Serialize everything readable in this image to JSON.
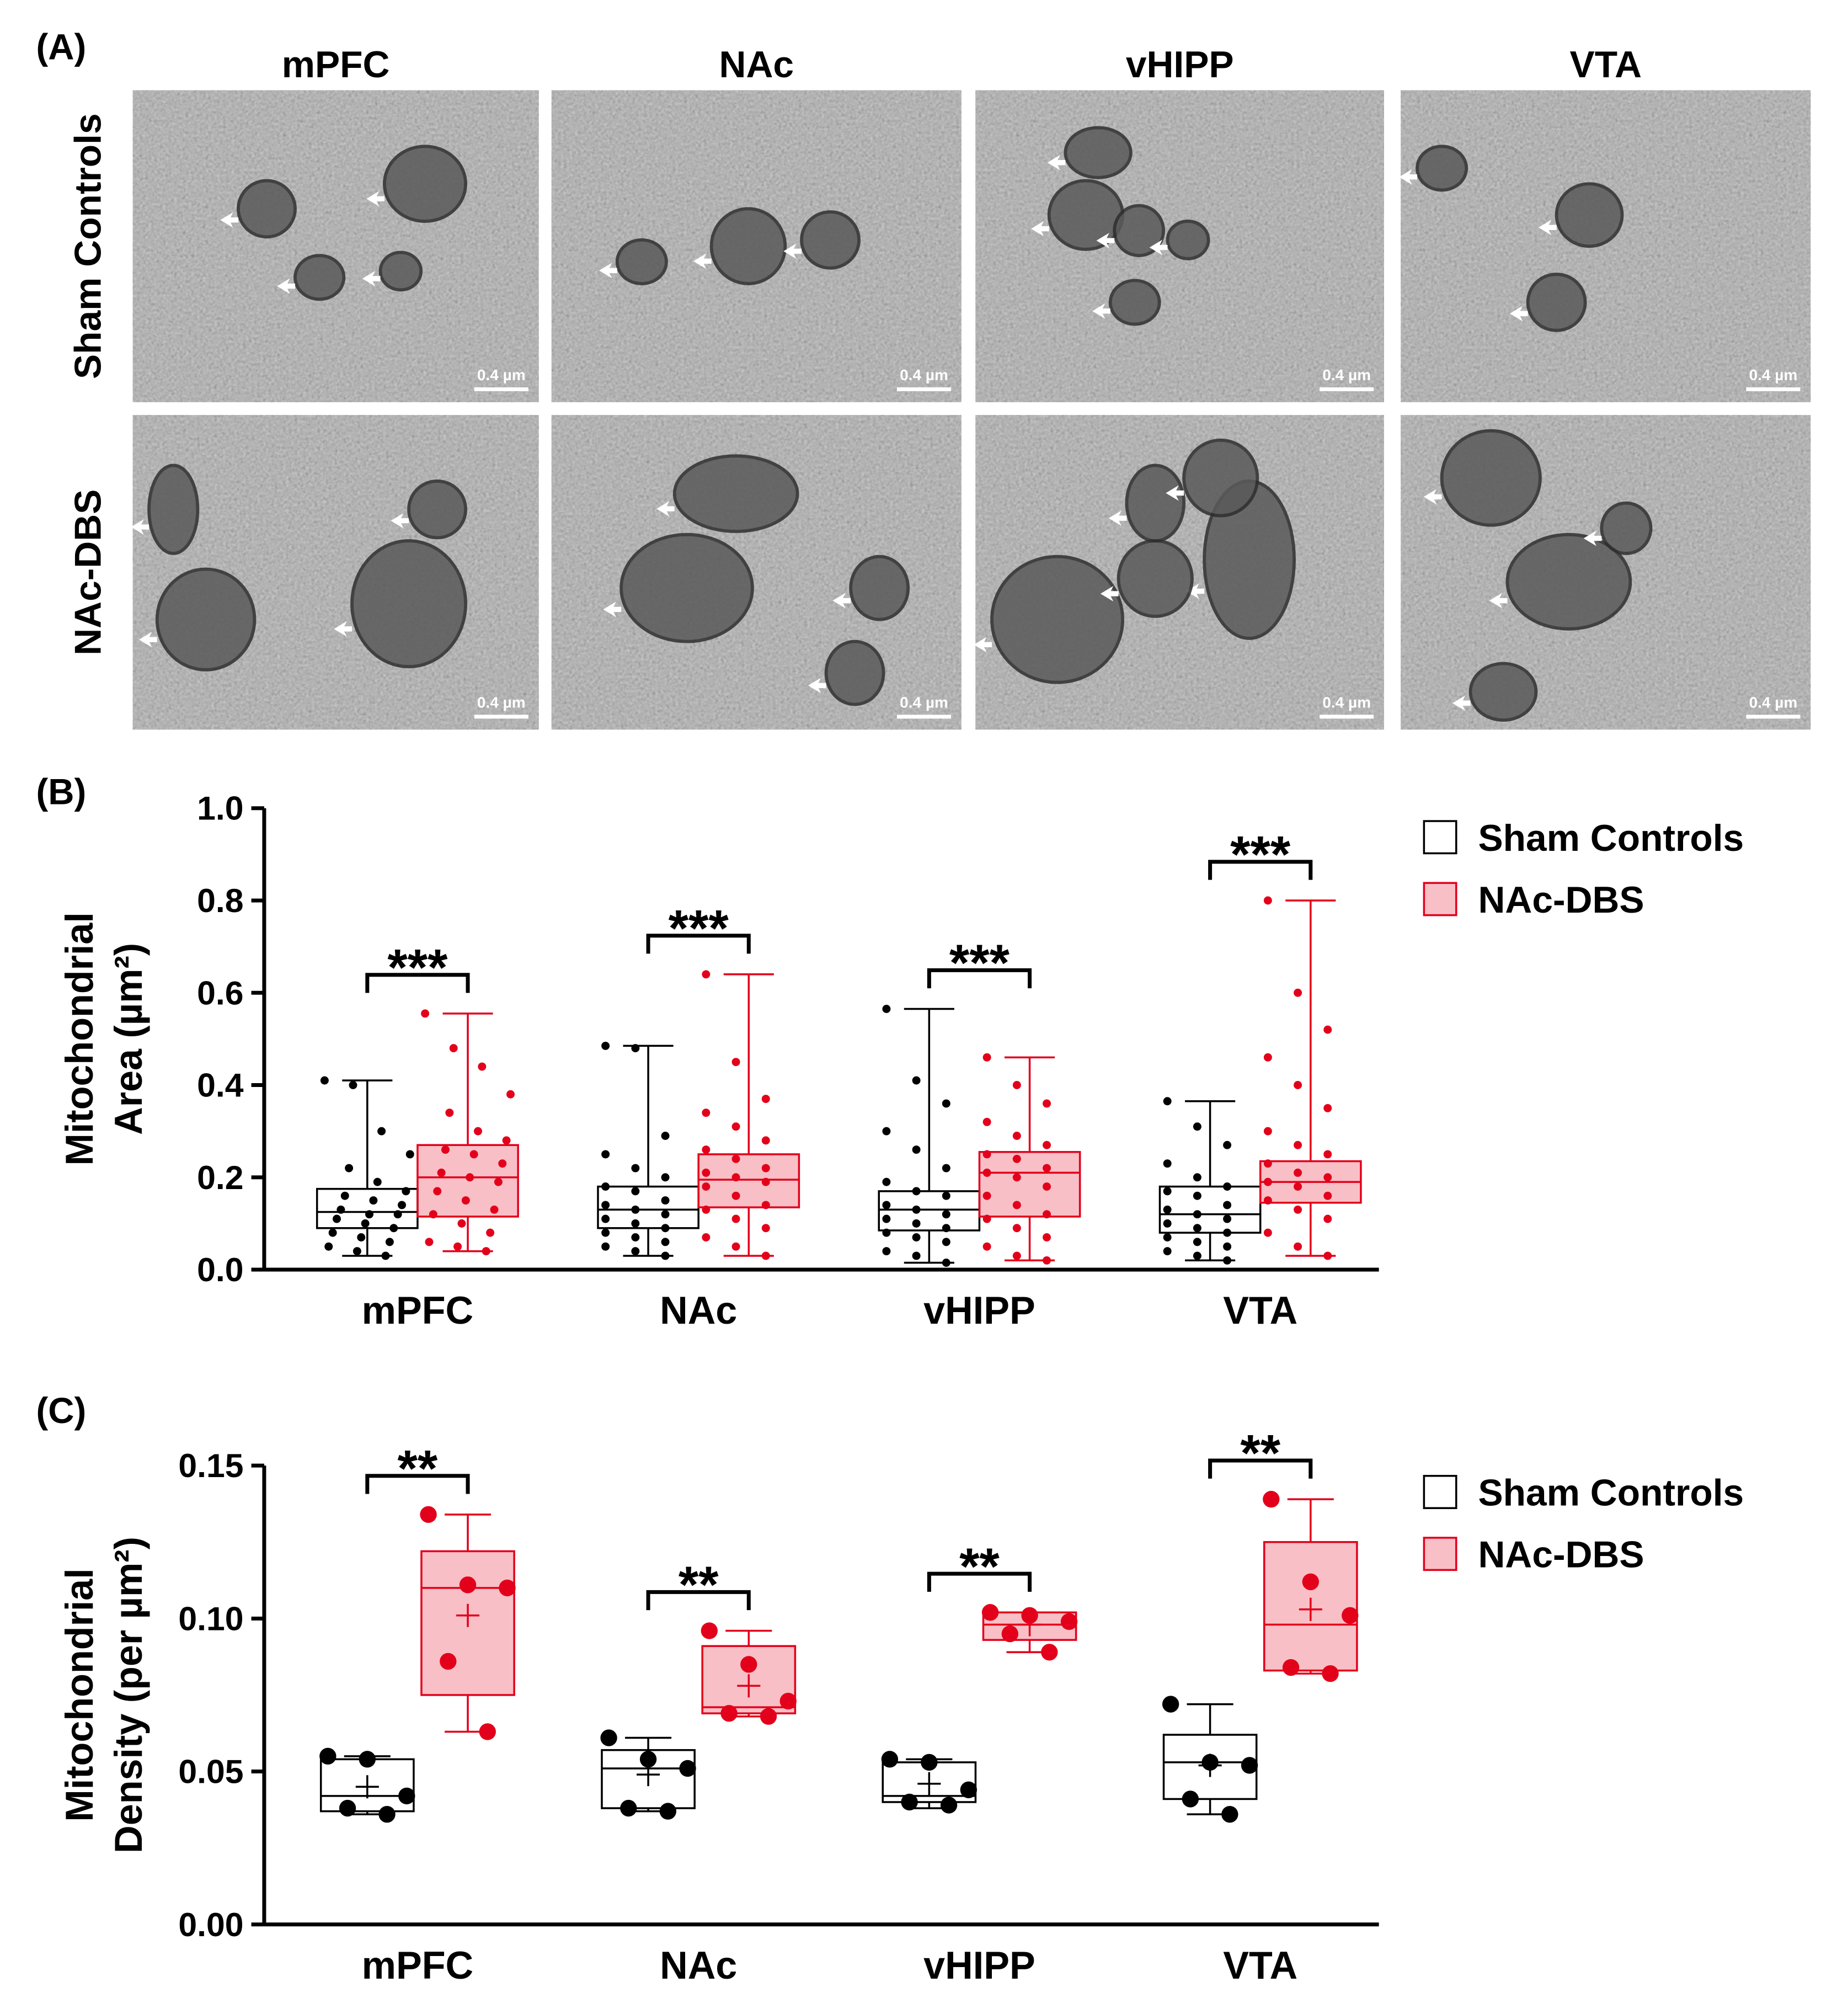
{
  "panel_a": {
    "label": "(A)",
    "columns": [
      "mPFC",
      "NAc",
      "vHIPP",
      "VTA"
    ],
    "rows": [
      "Sham Controls",
      "NAc-DBS"
    ],
    "scale_bar": "0.4 µm"
  },
  "chart_data": [
    {
      "type": "box",
      "panel_label": "(B)",
      "y_label": [
        "Mitochondrial",
        "Area (µm²)"
      ],
      "categories": [
        "mPFC",
        "NAc",
        "vHIPP",
        "VTA"
      ],
      "ylim": [
        0,
        1
      ],
      "yticks": [
        {
          "value": 0,
          "label": "0.0"
        },
        0.2,
        0.4,
        0.6,
        0.8,
        {
          "value": 1,
          "label": "1.0"
        }
      ],
      "annotations": [
        "***",
        "***",
        "***",
        "***"
      ],
      "series": [
        {
          "name": "Sham Controls",
          "color": "#000000",
          "boxes": [
            {
              "min": 0.03,
              "q1": 0.09,
              "median": 0.125,
              "q3": 0.175,
              "max": 0.41,
              "points": [
                0.41,
                0.4,
                0.3,
                0.25,
                0.22,
                0.19,
                0.17,
                0.16,
                0.15,
                0.14,
                0.13,
                0.12,
                0.12,
                0.11,
                0.1,
                0.09,
                0.08,
                0.07,
                0.06,
                0.05,
                0.04,
                0.03
              ]
            },
            {
              "min": 0.03,
              "q1": 0.09,
              "median": 0.13,
              "q3": 0.18,
              "max": 0.485,
              "points": [
                0.485,
                0.48,
                0.29,
                0.25,
                0.22,
                0.2,
                0.18,
                0.17,
                0.15,
                0.14,
                0.13,
                0.12,
                0.11,
                0.1,
                0.09,
                0.08,
                0.07,
                0.06,
                0.05,
                0.04,
                0.03
              ]
            },
            {
              "min": 0.015,
              "q1": 0.085,
              "median": 0.13,
              "q3": 0.17,
              "max": 0.565,
              "points": [
                0.565,
                0.41,
                0.36,
                0.3,
                0.26,
                0.22,
                0.19,
                0.17,
                0.16,
                0.14,
                0.13,
                0.12,
                0.11,
                0.1,
                0.09,
                0.08,
                0.07,
                0.06,
                0.04,
                0.03,
                0.015
              ]
            },
            {
              "min": 0.02,
              "q1": 0.08,
              "median": 0.12,
              "q3": 0.18,
              "max": 0.365,
              "points": [
                0.365,
                0.31,
                0.27,
                0.23,
                0.2,
                0.18,
                0.17,
                0.16,
                0.14,
                0.13,
                0.12,
                0.11,
                0.1,
                0.09,
                0.08,
                0.07,
                0.06,
                0.05,
                0.04,
                0.03,
                0.02
              ]
            }
          ]
        },
        {
          "name": "NAc-DBS",
          "color": "#e3001b",
          "boxes": [
            {
              "min": 0.04,
              "q1": 0.115,
              "median": 0.2,
              "q3": 0.27,
              "max": 0.555,
              "points": [
                0.555,
                0.48,
                0.44,
                0.38,
                0.34,
                0.3,
                0.28,
                0.26,
                0.25,
                0.23,
                0.21,
                0.2,
                0.19,
                0.17,
                0.15,
                0.13,
                0.12,
                0.1,
                0.08,
                0.06,
                0.05,
                0.04
              ]
            },
            {
              "min": 0.03,
              "q1": 0.135,
              "median": 0.195,
              "q3": 0.25,
              "max": 0.64,
              "points": [
                0.64,
                0.45,
                0.37,
                0.34,
                0.31,
                0.28,
                0.26,
                0.24,
                0.22,
                0.21,
                0.2,
                0.19,
                0.18,
                0.16,
                0.14,
                0.13,
                0.11,
                0.09,
                0.07,
                0.05,
                0.03
              ]
            },
            {
              "min": 0.02,
              "q1": 0.115,
              "median": 0.21,
              "q3": 0.255,
              "max": 0.46,
              "points": [
                0.46,
                0.4,
                0.36,
                0.32,
                0.29,
                0.27,
                0.25,
                0.24,
                0.22,
                0.21,
                0.2,
                0.18,
                0.16,
                0.14,
                0.12,
                0.11,
                0.09,
                0.07,
                0.05,
                0.03,
                0.02
              ]
            },
            {
              "min": 0.03,
              "q1": 0.145,
              "median": 0.19,
              "q3": 0.235,
              "max": 0.8,
              "points": [
                0.8,
                0.6,
                0.52,
                0.46,
                0.4,
                0.35,
                0.3,
                0.27,
                0.25,
                0.23,
                0.21,
                0.2,
                0.19,
                0.18,
                0.16,
                0.15,
                0.13,
                0.11,
                0.08,
                0.05,
                0.03
              ]
            }
          ]
        }
      ]
    },
    {
      "type": "box",
      "panel_label": "(C)",
      "y_label": [
        "Mitochondrial",
        "Density (per µm²)"
      ],
      "categories": [
        "mPFC",
        "NAc",
        "vHIPP",
        "VTA"
      ],
      "ylim": [
        0,
        0.15
      ],
      "yticks": [
        {
          "value": 0,
          "label": "0.00"
        },
        0.05,
        {
          "value": 0.1,
          "label": "0.10"
        },
        0.15
      ],
      "annotations": [
        "**",
        "**",
        "**",
        "**"
      ],
      "series": [
        {
          "name": "Sham Controls",
          "color": "#000000",
          "boxes": [
            {
              "min": 0.036,
              "q1": 0.037,
              "median": 0.042,
              "q3": 0.054,
              "max": 0.055,
              "mean": 0.045,
              "points": [
                0.055,
                0.054,
                0.042,
                0.038,
                0.036
              ]
            },
            {
              "min": 0.037,
              "q1": 0.038,
              "median": 0.051,
              "q3": 0.057,
              "max": 0.061,
              "mean": 0.049,
              "points": [
                0.061,
                0.054,
                0.051,
                0.038,
                0.037
              ]
            },
            {
              "min": 0.038,
              "q1": 0.04,
              "median": 0.042,
              "q3": 0.053,
              "max": 0.054,
              "mean": 0.046,
              "points": [
                0.054,
                0.053,
                0.044,
                0.04,
                0.039
              ]
            },
            {
              "min": 0.036,
              "q1": 0.041,
              "median": 0.053,
              "q3": 0.062,
              "max": 0.072,
              "mean": 0.052,
              "points": [
                0.072,
                0.053,
                0.052,
                0.041,
                0.036
              ]
            }
          ]
        },
        {
          "name": "NAc-DBS",
          "color": "#e3001b",
          "boxes": [
            {
              "min": 0.063,
              "q1": 0.075,
              "median": 0.11,
              "q3": 0.122,
              "max": 0.134,
              "mean": 0.101,
              "points": [
                0.134,
                0.111,
                0.11,
                0.086,
                0.063
              ]
            },
            {
              "min": 0.068,
              "q1": 0.069,
              "median": 0.071,
              "q3": 0.091,
              "max": 0.096,
              "mean": 0.078,
              "points": [
                0.096,
                0.085,
                0.073,
                0.069,
                0.068
              ]
            },
            {
              "min": 0.089,
              "q1": 0.093,
              "median": 0.098,
              "q3": 0.102,
              "max": 0.102,
              "mean": 0.098,
              "points": [
                0.102,
                0.101,
                0.099,
                0.095,
                0.089
              ]
            },
            {
              "min": 0.082,
              "q1": 0.083,
              "median": 0.098,
              "q3": 0.125,
              "max": 0.139,
              "mean": 0.103,
              "points": [
                0.139,
                0.112,
                0.101,
                0.084,
                0.082
              ]
            }
          ]
        }
      ]
    }
  ]
}
